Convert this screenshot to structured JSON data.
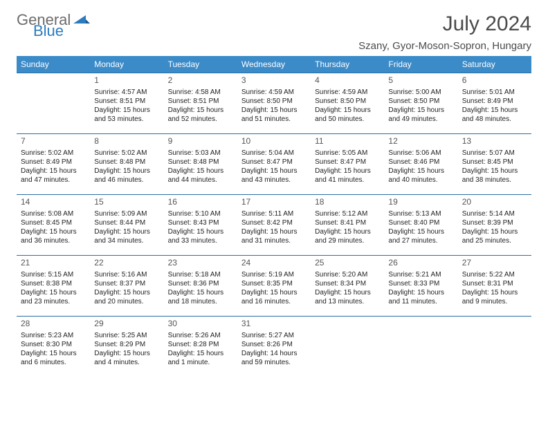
{
  "brand": {
    "line1": "General",
    "line2": "Blue"
  },
  "title": "July 2024",
  "location": "Szany, Gyor-Moson-Sopron, Hungary",
  "colors": {
    "header_bg": "#3b8bc9",
    "header_text": "#ffffff",
    "border": "#2b6da3",
    "title_color": "#4a4a4a",
    "body_text": "#222222",
    "logo_gray": "#6b6b6b",
    "logo_blue": "#2b7bbf"
  },
  "typography": {
    "title_fontsize": 30,
    "location_fontsize": 15,
    "dayheader_fontsize": 12,
    "daynum_fontsize": 12,
    "cell_fontsize": 10
  },
  "day_headers": [
    "Sunday",
    "Monday",
    "Tuesday",
    "Wednesday",
    "Thursday",
    "Friday",
    "Saturday"
  ],
  "weeks": [
    [
      {
        "n": "",
        "lines": []
      },
      {
        "n": "1",
        "lines": [
          "Sunrise: 4:57 AM",
          "Sunset: 8:51 PM",
          "Daylight: 15 hours and 53 minutes."
        ]
      },
      {
        "n": "2",
        "lines": [
          "Sunrise: 4:58 AM",
          "Sunset: 8:51 PM",
          "Daylight: 15 hours and 52 minutes."
        ]
      },
      {
        "n": "3",
        "lines": [
          "Sunrise: 4:59 AM",
          "Sunset: 8:50 PM",
          "Daylight: 15 hours and 51 minutes."
        ]
      },
      {
        "n": "4",
        "lines": [
          "Sunrise: 4:59 AM",
          "Sunset: 8:50 PM",
          "Daylight: 15 hours and 50 minutes."
        ]
      },
      {
        "n": "5",
        "lines": [
          "Sunrise: 5:00 AM",
          "Sunset: 8:50 PM",
          "Daylight: 15 hours and 49 minutes."
        ]
      },
      {
        "n": "6",
        "lines": [
          "Sunrise: 5:01 AM",
          "Sunset: 8:49 PM",
          "Daylight: 15 hours and 48 minutes."
        ]
      }
    ],
    [
      {
        "n": "7",
        "lines": [
          "Sunrise: 5:02 AM",
          "Sunset: 8:49 PM",
          "Daylight: 15 hours and 47 minutes."
        ]
      },
      {
        "n": "8",
        "lines": [
          "Sunrise: 5:02 AM",
          "Sunset: 8:48 PM",
          "Daylight: 15 hours and 46 minutes."
        ]
      },
      {
        "n": "9",
        "lines": [
          "Sunrise: 5:03 AM",
          "Sunset: 8:48 PM",
          "Daylight: 15 hours and 44 minutes."
        ]
      },
      {
        "n": "10",
        "lines": [
          "Sunrise: 5:04 AM",
          "Sunset: 8:47 PM",
          "Daylight: 15 hours and 43 minutes."
        ]
      },
      {
        "n": "11",
        "lines": [
          "Sunrise: 5:05 AM",
          "Sunset: 8:47 PM",
          "Daylight: 15 hours and 41 minutes."
        ]
      },
      {
        "n": "12",
        "lines": [
          "Sunrise: 5:06 AM",
          "Sunset: 8:46 PM",
          "Daylight: 15 hours and 40 minutes."
        ]
      },
      {
        "n": "13",
        "lines": [
          "Sunrise: 5:07 AM",
          "Sunset: 8:45 PM",
          "Daylight: 15 hours and 38 minutes."
        ]
      }
    ],
    [
      {
        "n": "14",
        "lines": [
          "Sunrise: 5:08 AM",
          "Sunset: 8:45 PM",
          "Daylight: 15 hours and 36 minutes."
        ]
      },
      {
        "n": "15",
        "lines": [
          "Sunrise: 5:09 AM",
          "Sunset: 8:44 PM",
          "Daylight: 15 hours and 34 minutes."
        ]
      },
      {
        "n": "16",
        "lines": [
          "Sunrise: 5:10 AM",
          "Sunset: 8:43 PM",
          "Daylight: 15 hours and 33 minutes."
        ]
      },
      {
        "n": "17",
        "lines": [
          "Sunrise: 5:11 AM",
          "Sunset: 8:42 PM",
          "Daylight: 15 hours and 31 minutes."
        ]
      },
      {
        "n": "18",
        "lines": [
          "Sunrise: 5:12 AM",
          "Sunset: 8:41 PM",
          "Daylight: 15 hours and 29 minutes."
        ]
      },
      {
        "n": "19",
        "lines": [
          "Sunrise: 5:13 AM",
          "Sunset: 8:40 PM",
          "Daylight: 15 hours and 27 minutes."
        ]
      },
      {
        "n": "20",
        "lines": [
          "Sunrise: 5:14 AM",
          "Sunset: 8:39 PM",
          "Daylight: 15 hours and 25 minutes."
        ]
      }
    ],
    [
      {
        "n": "21",
        "lines": [
          "Sunrise: 5:15 AM",
          "Sunset: 8:38 PM",
          "Daylight: 15 hours and 23 minutes."
        ]
      },
      {
        "n": "22",
        "lines": [
          "Sunrise: 5:16 AM",
          "Sunset: 8:37 PM",
          "Daylight: 15 hours and 20 minutes."
        ]
      },
      {
        "n": "23",
        "lines": [
          "Sunrise: 5:18 AM",
          "Sunset: 8:36 PM",
          "Daylight: 15 hours and 18 minutes."
        ]
      },
      {
        "n": "24",
        "lines": [
          "Sunrise: 5:19 AM",
          "Sunset: 8:35 PM",
          "Daylight: 15 hours and 16 minutes."
        ]
      },
      {
        "n": "25",
        "lines": [
          "Sunrise: 5:20 AM",
          "Sunset: 8:34 PM",
          "Daylight: 15 hours and 13 minutes."
        ]
      },
      {
        "n": "26",
        "lines": [
          "Sunrise: 5:21 AM",
          "Sunset: 8:33 PM",
          "Daylight: 15 hours and 11 minutes."
        ]
      },
      {
        "n": "27",
        "lines": [
          "Sunrise: 5:22 AM",
          "Sunset: 8:31 PM",
          "Daylight: 15 hours and 9 minutes."
        ]
      }
    ],
    [
      {
        "n": "28",
        "lines": [
          "Sunrise: 5:23 AM",
          "Sunset: 8:30 PM",
          "Daylight: 15 hours and 6 minutes."
        ]
      },
      {
        "n": "29",
        "lines": [
          "Sunrise: 5:25 AM",
          "Sunset: 8:29 PM",
          "Daylight: 15 hours and 4 minutes."
        ]
      },
      {
        "n": "30",
        "lines": [
          "Sunrise: 5:26 AM",
          "Sunset: 8:28 PM",
          "Daylight: 15 hours and 1 minute."
        ]
      },
      {
        "n": "31",
        "lines": [
          "Sunrise: 5:27 AM",
          "Sunset: 8:26 PM",
          "Daylight: 14 hours and 59 minutes."
        ]
      },
      {
        "n": "",
        "lines": []
      },
      {
        "n": "",
        "lines": []
      },
      {
        "n": "",
        "lines": []
      }
    ]
  ]
}
